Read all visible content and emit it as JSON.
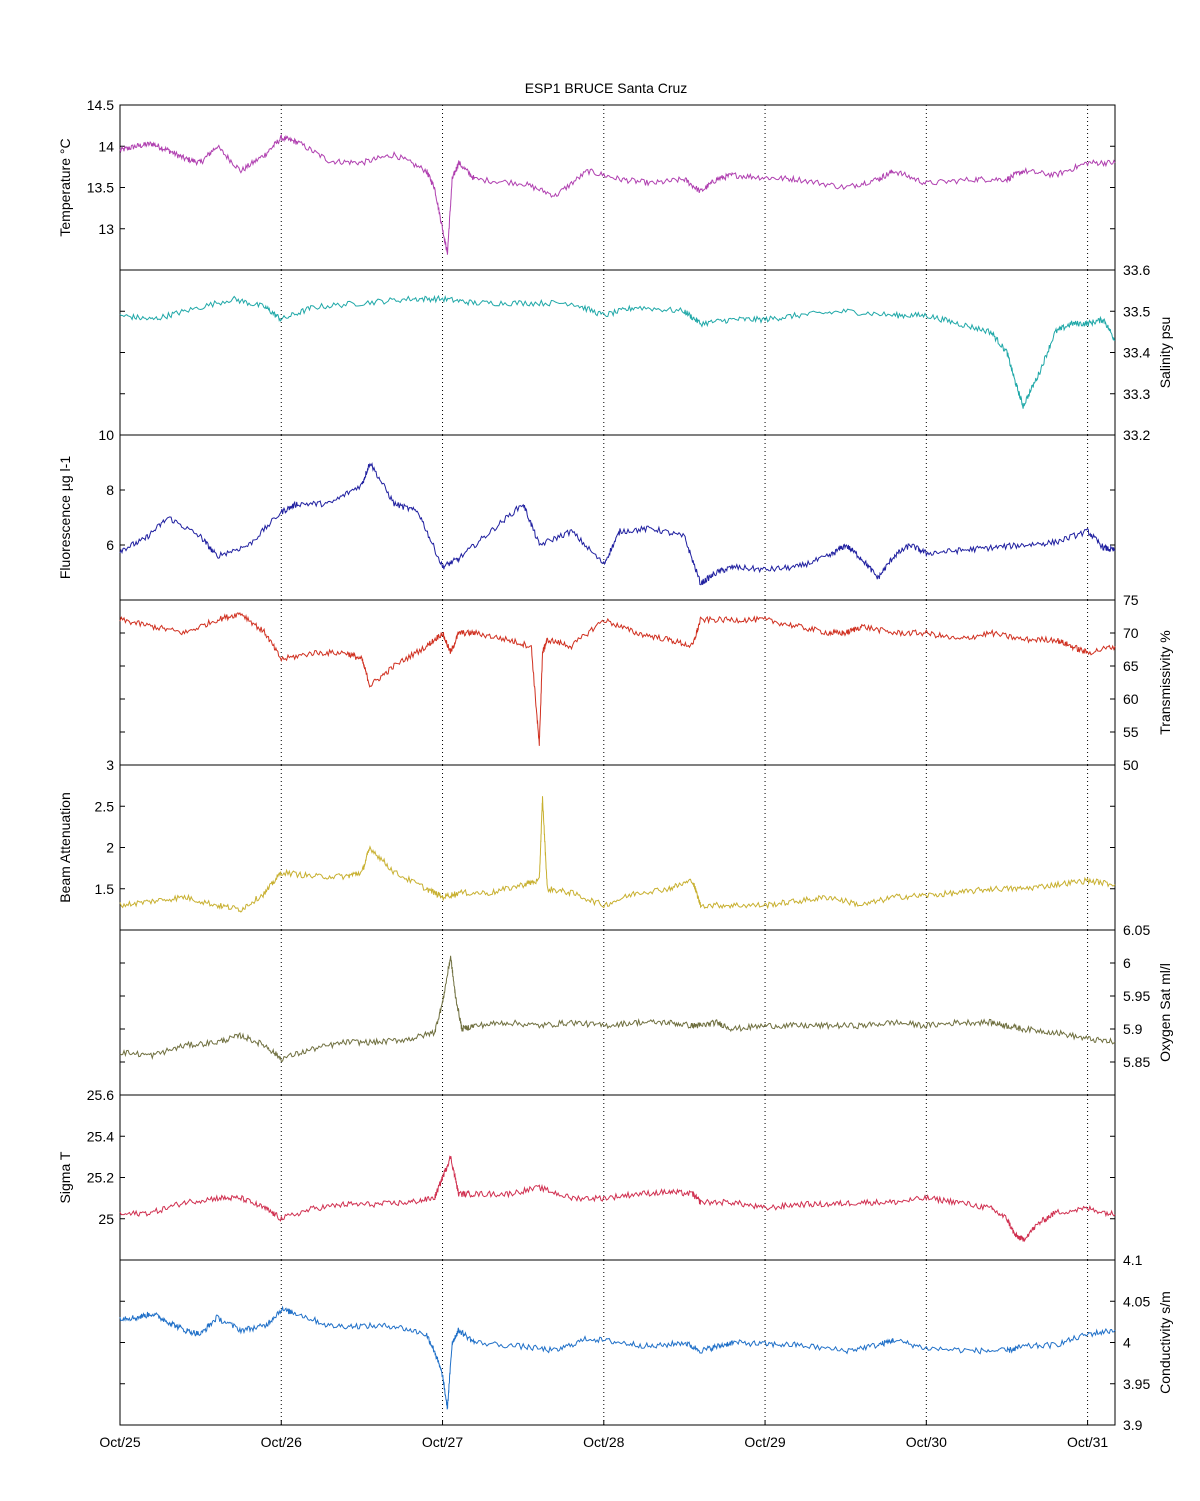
{
  "chart_data": {
    "type": "line",
    "title": "ESP1 BRUCE Santa Cruz",
    "x_axis": {
      "range": [
        "Oct/25",
        "Oct/31+0.17"
      ],
      "tick_labels": [
        "Oct/25",
        "Oct/26",
        "Oct/27",
        "Oct/28",
        "Oct/29",
        "Oct/30",
        "Oct/31"
      ],
      "grid": "vertical dotted at each day"
    },
    "panels": [
      {
        "ylabel": "Temperature °C",
        "axis_side": "left",
        "ylim": [
          12.5,
          14.5
        ],
        "yticks": [
          "12.5",
          "13",
          "13.5",
          "14",
          "14.5"
        ],
        "color": "#b040b0",
        "series": {
          "name": "",
          "x": [
            0,
            0.1,
            0.2,
            0.3,
            0.4,
            0.5,
            0.6,
            0.75,
            0.9,
            1.0,
            1.1,
            1.3,
            1.5,
            1.7,
            1.9,
            1.95,
            2.0,
            2.03,
            2.06,
            2.1,
            2.2,
            2.5,
            2.7,
            2.9,
            3.1,
            3.3,
            3.5,
            3.6,
            3.7,
            3.8,
            4.0,
            4.2,
            4.5,
            4.7,
            4.8,
            5.0,
            5.3,
            5.5,
            5.6,
            5.8,
            6.0,
            6.17
          ],
          "y": [
            13.95,
            14.0,
            14.03,
            13.95,
            13.85,
            13.8,
            14.0,
            13.7,
            13.9,
            14.1,
            14.05,
            13.82,
            13.8,
            13.9,
            13.7,
            13.5,
            13.0,
            12.7,
            13.6,
            13.8,
            13.6,
            13.55,
            13.4,
            13.7,
            13.6,
            13.55,
            13.6,
            13.45,
            13.6,
            13.65,
            13.62,
            13.6,
            13.5,
            13.6,
            13.7,
            13.55,
            13.6,
            13.6,
            13.7,
            13.65,
            13.8,
            13.8
          ]
        }
      },
      {
        "ylabel": "Salinity psu",
        "axis_side": "right",
        "ylim": [
          33.2,
          33.6
        ],
        "yticks": [
          "33.2",
          "33.3",
          "33.4",
          "33.5",
          "33.6"
        ],
        "color": "#20a8a8",
        "series": {
          "name": "",
          "x": [
            0,
            0.2,
            0.4,
            0.7,
            0.9,
            1.0,
            1.2,
            1.5,
            1.8,
            2.0,
            2.2,
            2.5,
            2.8,
            3.0,
            3.2,
            3.5,
            3.6,
            3.8,
            4.0,
            4.2,
            4.5,
            4.8,
            5.0,
            5.2,
            5.4,
            5.5,
            5.55,
            5.6,
            5.7,
            5.8,
            5.9,
            6.0,
            6.1,
            6.17
          ],
          "y": [
            33.49,
            33.48,
            33.5,
            33.53,
            33.51,
            33.48,
            33.51,
            33.52,
            33.53,
            33.53,
            33.52,
            33.52,
            33.52,
            33.49,
            33.51,
            33.5,
            33.47,
            33.48,
            33.48,
            33.49,
            33.5,
            33.49,
            33.49,
            33.47,
            33.45,
            33.4,
            33.33,
            33.27,
            33.35,
            33.45,
            33.47,
            33.47,
            33.48,
            33.43
          ]
        }
      },
      {
        "ylabel": "Fluorescence µg l-1",
        "axis_side": "left",
        "ylim": [
          4,
          10
        ],
        "yticks": [
          "4",
          "6",
          "8",
          "10"
        ],
        "color": "#2020a0",
        "series": {
          "name": "",
          "x": [
            0,
            0.15,
            0.3,
            0.5,
            0.6,
            0.8,
            1.0,
            1.1,
            1.3,
            1.5,
            1.55,
            1.7,
            1.85,
            2.0,
            2.1,
            2.3,
            2.5,
            2.6,
            2.8,
            3.0,
            3.1,
            3.3,
            3.5,
            3.6,
            3.7,
            3.8,
            4.0,
            4.2,
            4.4,
            4.5,
            4.6,
            4.7,
            4.8,
            4.9,
            5.0,
            5.2,
            5.4,
            5.6,
            5.8,
            6.0,
            6.1,
            6.17
          ],
          "y": [
            5.8,
            6.2,
            7.0,
            6.3,
            5.6,
            6.0,
            7.2,
            7.5,
            7.5,
            8.2,
            9.0,
            7.5,
            7.2,
            5.2,
            5.5,
            6.5,
            7.5,
            6.0,
            6.5,
            5.3,
            6.5,
            6.6,
            6.3,
            4.6,
            5.0,
            5.2,
            5.1,
            5.2,
            5.6,
            6.0,
            5.5,
            4.8,
            5.6,
            6.0,
            5.7,
            5.8,
            5.9,
            6.0,
            6.1,
            6.5,
            5.9,
            5.8
          ]
        }
      },
      {
        "ylabel": "Transmissivity %",
        "axis_side": "right",
        "ylim": [
          50,
          75
        ],
        "yticks": [
          "50",
          "55",
          "60",
          "65",
          "70",
          "75"
        ],
        "color": "#d03020",
        "series": {
          "name": "",
          "x": [
            0,
            0.2,
            0.4,
            0.6,
            0.75,
            0.9,
            1.0,
            1.2,
            1.4,
            1.5,
            1.55,
            1.7,
            1.9,
            2.0,
            2.05,
            2.1,
            2.2,
            2.4,
            2.55,
            2.6,
            2.62,
            2.65,
            2.8,
            3.0,
            3.2,
            3.4,
            3.55,
            3.6,
            3.8,
            4.0,
            4.2,
            4.4,
            4.5,
            4.6,
            4.8,
            5.0,
            5.2,
            5.4,
            5.6,
            5.8,
            5.9,
            6.0,
            6.17
          ],
          "y": [
            72,
            71,
            70,
            72,
            73,
            70,
            66,
            67,
            67,
            66,
            62,
            65,
            68,
            70,
            67,
            70,
            70,
            69,
            68,
            53,
            67,
            69,
            68,
            72,
            70,
            69,
            68,
            72,
            72,
            72,
            71,
            70,
            70,
            71,
            70,
            70,
            69,
            70,
            69,
            69,
            68,
            67,
            68
          ]
        }
      },
      {
        "ylabel": "Beam Attenuation",
        "axis_side": "left",
        "ylim": [
          1,
          3
        ],
        "yticks": [
          "1",
          "1.5",
          "2",
          "2.5",
          "3"
        ],
        "color": "#c8b030",
        "series": {
          "name": "",
          "x": [
            0,
            0.2,
            0.4,
            0.6,
            0.75,
            0.9,
            1.0,
            1.2,
            1.4,
            1.5,
            1.55,
            1.7,
            1.9,
            2.0,
            2.1,
            2.3,
            2.5,
            2.6,
            2.62,
            2.65,
            2.8,
            3.0,
            3.2,
            3.4,
            3.55,
            3.6,
            3.8,
            4.0,
            4.2,
            4.4,
            4.6,
            4.8,
            5.0,
            5.2,
            5.4,
            5.6,
            5.8,
            6.0,
            6.17
          ],
          "y": [
            1.3,
            1.35,
            1.4,
            1.3,
            1.25,
            1.45,
            1.7,
            1.65,
            1.65,
            1.7,
            2.0,
            1.7,
            1.5,
            1.4,
            1.45,
            1.45,
            1.55,
            1.6,
            2.6,
            1.5,
            1.45,
            1.3,
            1.45,
            1.5,
            1.6,
            1.3,
            1.3,
            1.3,
            1.35,
            1.4,
            1.3,
            1.4,
            1.42,
            1.45,
            1.5,
            1.5,
            1.55,
            1.6,
            1.55
          ]
        }
      },
      {
        "ylabel": "Oxygen Sat ml/l",
        "axis_side": "right",
        "ylim": [
          5.8,
          6.05
        ],
        "yticks": [
          "5.85",
          "5.9",
          "5.95",
          "6",
          "6.05"
        ],
        "color": "#707040",
        "series": {
          "name": "",
          "x": [
            0,
            0.2,
            0.4,
            0.6,
            0.75,
            0.9,
            1.0,
            1.2,
            1.4,
            1.6,
            1.8,
            1.95,
            2.0,
            2.05,
            2.08,
            2.12,
            2.2,
            2.4,
            2.6,
            2.8,
            3.0,
            3.2,
            3.4,
            3.55,
            3.6,
            3.7,
            3.8,
            4.0,
            4.2,
            4.4,
            4.6,
            4.8,
            5.0,
            5.2,
            5.4,
            5.5,
            5.6,
            5.8,
            6.0,
            6.17
          ],
          "y": [
            5.865,
            5.86,
            5.875,
            5.88,
            5.89,
            5.875,
            5.855,
            5.87,
            5.88,
            5.88,
            5.885,
            5.895,
            5.94,
            6.01,
            5.95,
            5.9,
            5.905,
            5.91,
            5.905,
            5.91,
            5.905,
            5.91,
            5.91,
            5.905,
            5.905,
            5.91,
            5.9,
            5.905,
            5.905,
            5.905,
            5.905,
            5.91,
            5.905,
            5.91,
            5.91,
            5.905,
            5.9,
            5.895,
            5.885,
            5.88
          ]
        }
      },
      {
        "ylabel": "Sigma T",
        "axis_side": "left",
        "ylim": [
          24.8,
          25.6
        ],
        "yticks": [
          "24.8",
          "25",
          "25.2",
          "25.4",
          "25.6"
        ],
        "color": "#d03050",
        "series": {
          "name": "",
          "x": [
            0,
            0.2,
            0.4,
            0.6,
            0.75,
            0.9,
            1.0,
            1.2,
            1.4,
            1.6,
            1.8,
            1.95,
            2.0,
            2.05,
            2.1,
            2.2,
            2.4,
            2.6,
            2.8,
            3.0,
            3.2,
            3.4,
            3.55,
            3.6,
            3.8,
            4.0,
            4.2,
            4.4,
            4.6,
            4.8,
            5.0,
            5.2,
            5.4,
            5.5,
            5.55,
            5.6,
            5.7,
            5.8,
            6.0,
            6.17
          ],
          "y": [
            25.02,
            25.03,
            25.08,
            25.1,
            25.1,
            25.05,
            25.0,
            25.05,
            25.07,
            25.07,
            25.08,
            25.1,
            25.2,
            25.3,
            25.12,
            25.12,
            25.12,
            25.15,
            25.1,
            25.1,
            25.12,
            25.13,
            25.12,
            25.08,
            25.08,
            25.05,
            25.07,
            25.07,
            25.08,
            25.08,
            25.1,
            25.08,
            25.05,
            25.0,
            24.92,
            24.9,
            24.98,
            25.03,
            25.05,
            25.02
          ]
        }
      },
      {
        "ylabel": "Conductivity s/m",
        "axis_side": "right",
        "ylim": [
          3.9,
          4.1
        ],
        "yticks": [
          "3.9",
          "3.95",
          "4",
          "4.05",
          "4.1"
        ],
        "color": "#2070c8",
        "series": {
          "name": "",
          "x": [
            0,
            0.1,
            0.2,
            0.3,
            0.4,
            0.5,
            0.6,
            0.75,
            0.9,
            1.0,
            1.1,
            1.3,
            1.5,
            1.7,
            1.9,
            1.95,
            2.0,
            2.03,
            2.06,
            2.1,
            2.2,
            2.5,
            2.7,
            2.9,
            3.1,
            3.3,
            3.5,
            3.6,
            3.7,
            3.8,
            4.0,
            4.2,
            4.5,
            4.7,
            4.8,
            5.0,
            5.3,
            5.5,
            5.6,
            5.8,
            6.0,
            6.17
          ],
          "y": [
            4.03,
            4.03,
            4.035,
            4.025,
            4.015,
            4.01,
            4.03,
            4.015,
            4.02,
            4.04,
            4.035,
            4.02,
            4.02,
            4.02,
            4.01,
            3.99,
            3.96,
            3.92,
            4.0,
            4.015,
            4.0,
            3.995,
            3.99,
            4.005,
            4.0,
            3.995,
            4.0,
            3.99,
            3.995,
            4.0,
            3.998,
            3.997,
            3.99,
            3.997,
            4.003,
            3.993,
            3.99,
            3.99,
            3.995,
            3.997,
            4.01,
            4.015
          ]
        }
      }
    ]
  }
}
